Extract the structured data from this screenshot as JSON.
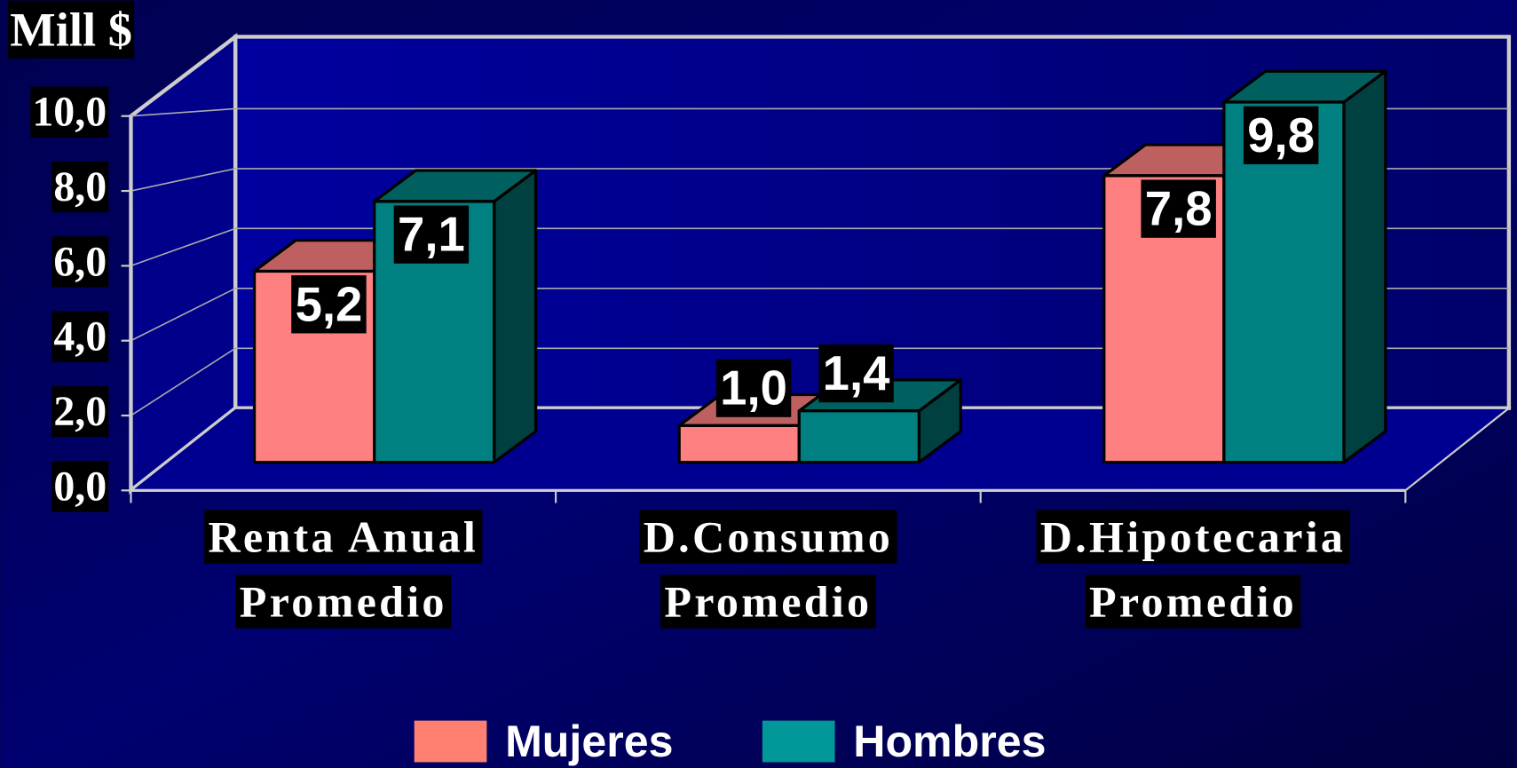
{
  "chart_data": {
    "type": "bar3d",
    "ylabel": "Mill $",
    "categories": [
      [
        "Renta Anual",
        "Promedio"
      ],
      [
        "D.Consumo",
        "Promedio"
      ],
      [
        "D.Hipotecaria",
        "Promedio"
      ]
    ],
    "series": [
      {
        "name": "Mujeres",
        "color": "#ff8080",
        "values": [
          5.2,
          1.0,
          7.8
        ],
        "value_labels": [
          "5,2",
          "1,0",
          "7,8"
        ]
      },
      {
        "name": "Hombres",
        "color": "#008080",
        "values": [
          7.1,
          1.4,
          9.8
        ],
        "value_labels": [
          "7,1",
          "1,4",
          "9,8"
        ]
      }
    ],
    "ylim": [
      0,
      10
    ],
    "yticks": [
      {
        "value": 0,
        "label": "0,0"
      },
      {
        "value": 2,
        "label": "2,0"
      },
      {
        "value": 4,
        "label": "4,0"
      },
      {
        "value": 6,
        "label": "6,0"
      },
      {
        "value": 8,
        "label": "8,0"
      },
      {
        "value": 10,
        "label": "10,0"
      }
    ],
    "grid": true,
    "legend": "bottom"
  }
}
